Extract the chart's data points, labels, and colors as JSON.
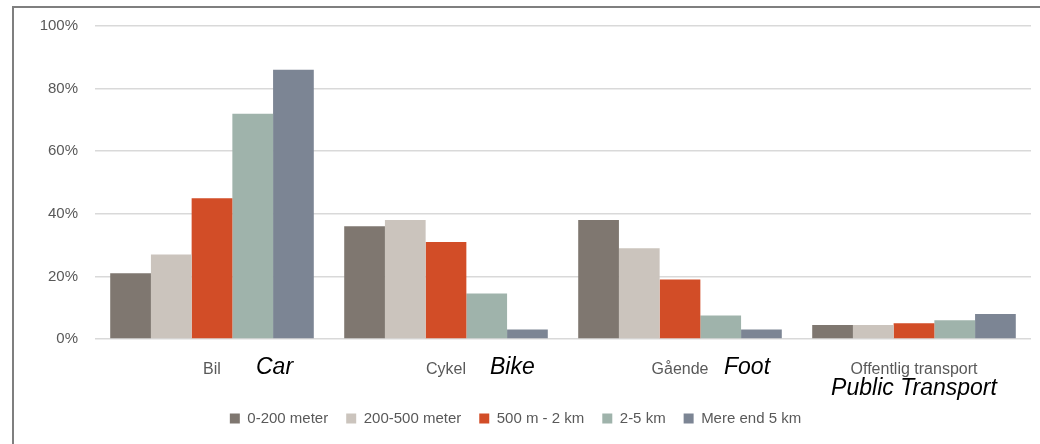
{
  "chart_data": {
    "type": "bar",
    "categories": [
      "Bil",
      "Cykel",
      "Gående",
      "Offentlig transport"
    ],
    "series": [
      {
        "name": "0-200 meter",
        "color": "#7f7770",
        "values": [
          21,
          36,
          38,
          4.5
        ]
      },
      {
        "name": "200-500 meter",
        "color": "#cbc4bd",
        "values": [
          27,
          38,
          29,
          4.5
        ]
      },
      {
        "name": "500 m - 2 km",
        "color": "#d24d27",
        "values": [
          45,
          31,
          19,
          5
        ]
      },
      {
        "name": "2-5 km",
        "color": "#9fb3ab",
        "values": [
          72,
          14.5,
          7.5,
          6
        ]
      },
      {
        "name": "Mere end 5 km",
        "color": "#7c8594",
        "values": [
          86,
          3,
          3,
          8
        ]
      }
    ],
    "ylim": [
      0,
      100
    ],
    "yticks": [
      {
        "value": 0,
        "label": "0%"
      },
      {
        "value": 20,
        "label": "20%"
      },
      {
        "value": 40,
        "label": "40%"
      },
      {
        "value": 60,
        "label": "60%"
      },
      {
        "value": 80,
        "label": "80%"
      },
      {
        "value": 100,
        "label": "100%"
      }
    ],
    "grid": "y",
    "legend": "bottom",
    "annotations": [
      "Car",
      "Bike",
      "Foot",
      "Public Transport"
    ]
  }
}
